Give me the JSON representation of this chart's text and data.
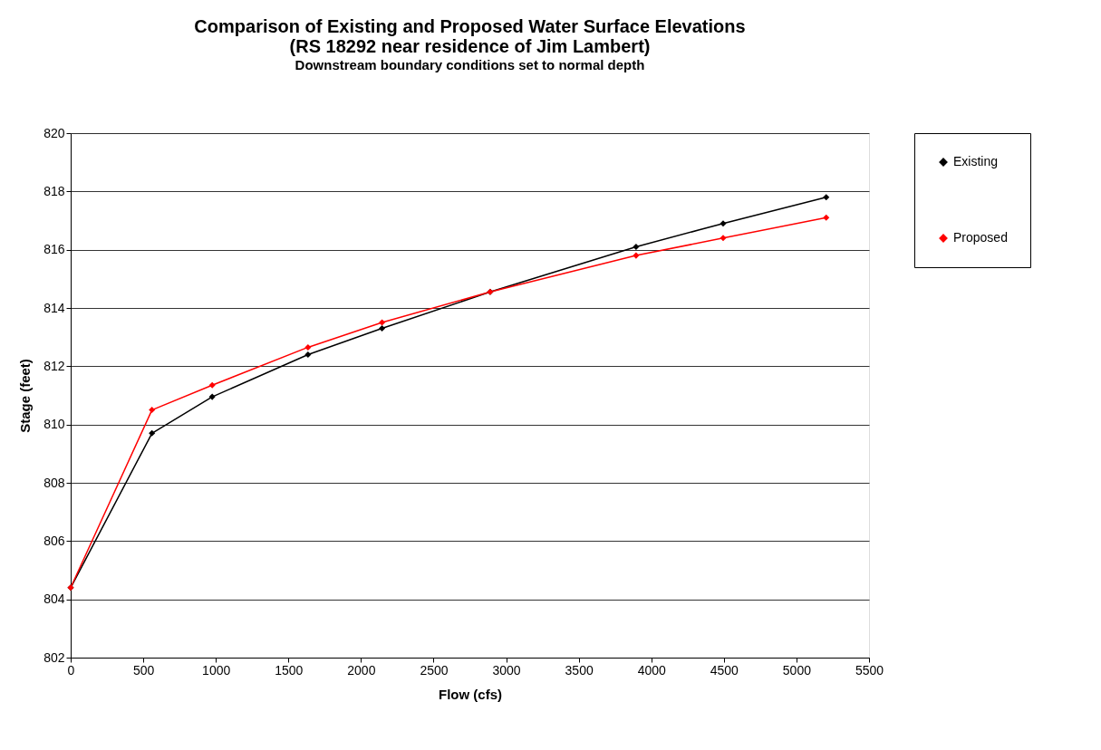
{
  "chart_data": {
    "type": "line",
    "title": "Comparison of Existing and Proposed Water Surface Elevations\n(RS 18292 near residence of Jim Lambert)",
    "subtitle": "Downstream boundary conditions set to normal depth",
    "xlabel": "Flow (cfs)",
    "ylabel": "Stage (feet)",
    "x": [
      0,
      560,
      975,
      1635,
      2145,
      2890,
      3895,
      4495,
      5205
    ],
    "series": [
      {
        "name": "Existing",
        "color": "#000000",
        "values": [
          804.4,
          809.7,
          810.95,
          812.4,
          813.3,
          814.55,
          816.1,
          816.9,
          817.8
        ]
      },
      {
        "name": "Proposed",
        "color": "#ff0000",
        "values": [
          804.4,
          810.5,
          811.35,
          812.65,
          813.5,
          814.55,
          815.8,
          816.4,
          817.1
        ]
      }
    ],
    "xlim": [
      0,
      5500
    ],
    "xticks": [
      0,
      500,
      1000,
      1500,
      2000,
      2500,
      3000,
      3500,
      4000,
      4500,
      5000,
      5500
    ],
    "ylim": [
      802,
      820
    ],
    "yticks": [
      802,
      804,
      806,
      808,
      810,
      812,
      814,
      816,
      818,
      820
    ],
    "grid": "y",
    "legend": "right",
    "marker": "diamond",
    "line_style": "solid"
  }
}
